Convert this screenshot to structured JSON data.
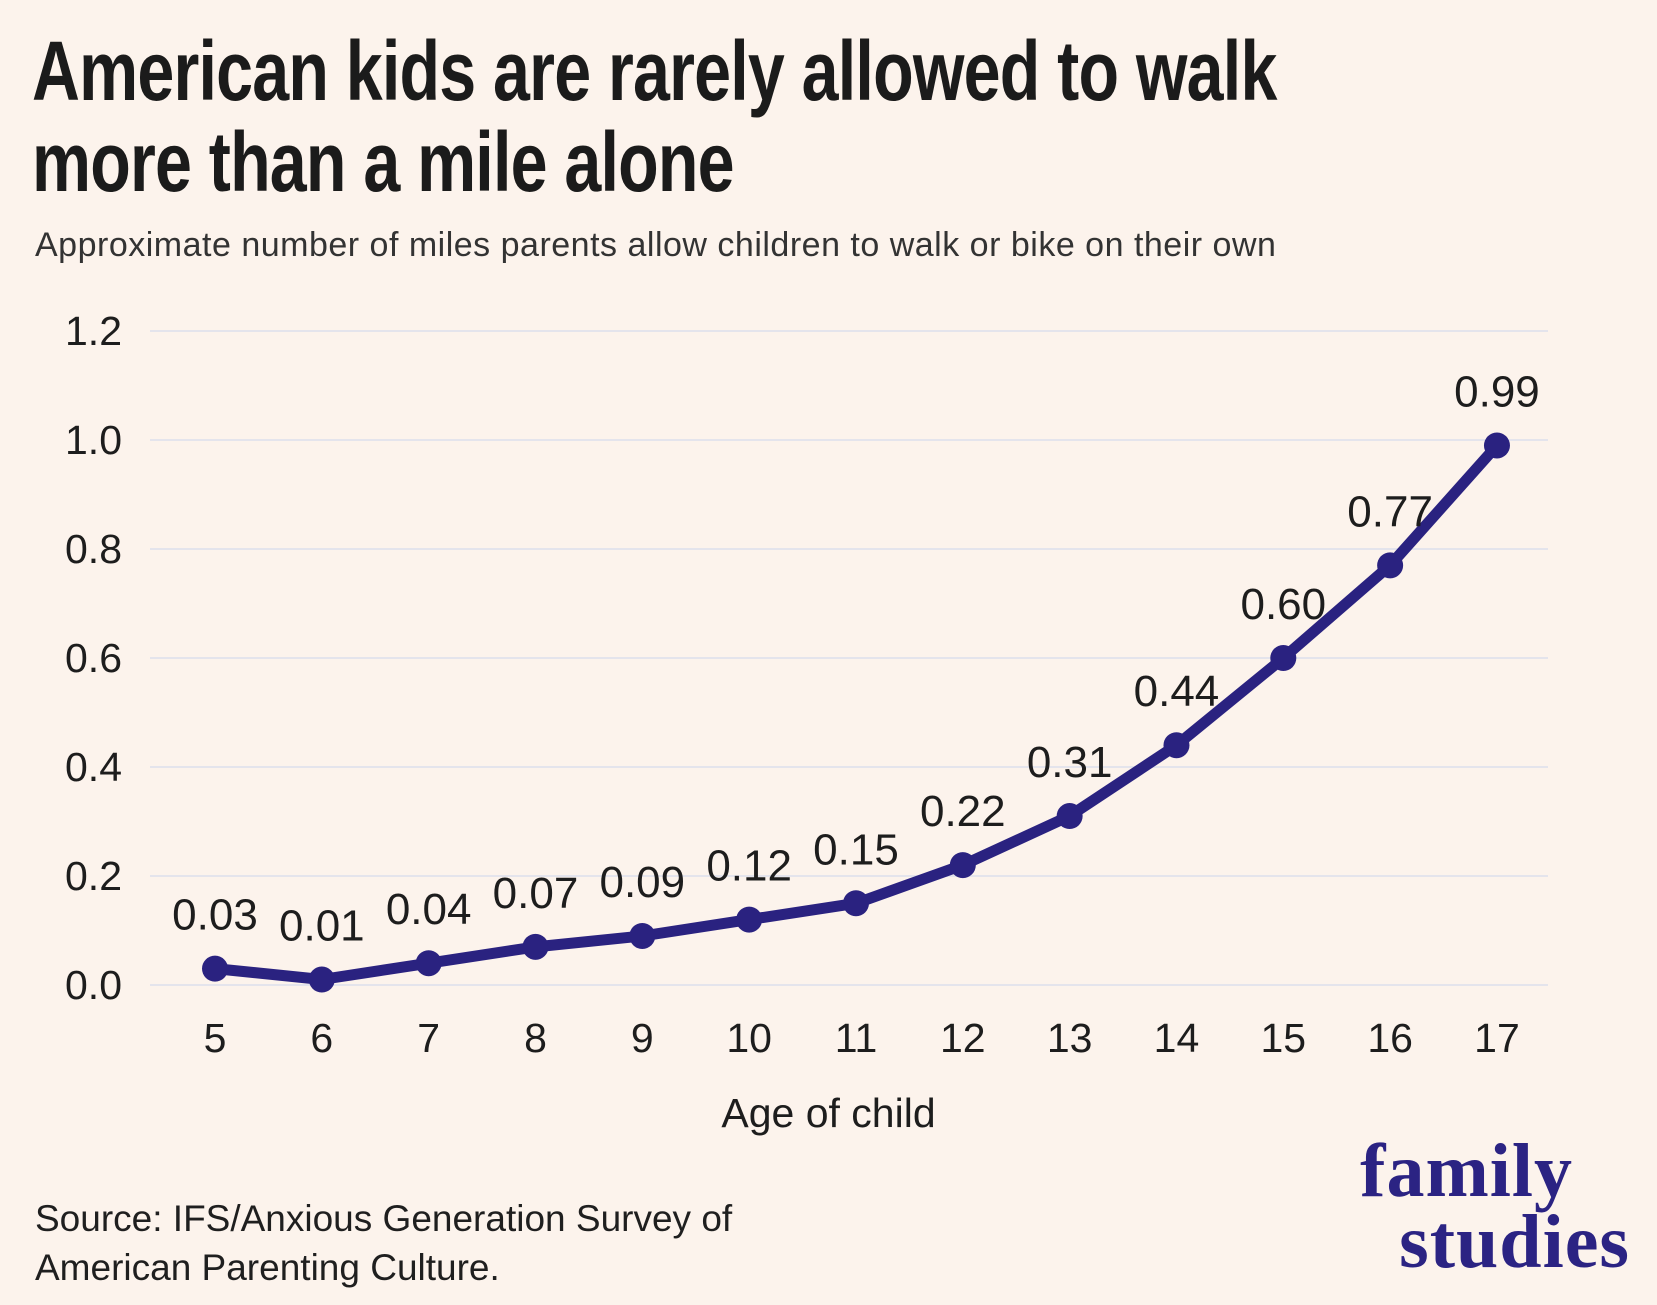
{
  "header": {
    "title_lines": [
      "American kids are rarely allowed to walk",
      "more than a mile alone"
    ],
    "subtitle": "Approximate number of miles parents allow children to walk or bike on their own"
  },
  "chart_data": {
    "type": "line",
    "title": "American kids are rarely allowed to walk more than a mile alone",
    "subtitle": "Approximate number of miles parents allow children to walk or bike on their own",
    "x": [
      5,
      6,
      7,
      8,
      9,
      10,
      11,
      12,
      13,
      14,
      15,
      16,
      17
    ],
    "values": [
      0.03,
      0.01,
      0.04,
      0.07,
      0.09,
      0.12,
      0.15,
      0.22,
      0.31,
      0.44,
      0.6,
      0.77,
      0.99
    ],
    "point_labels": [
      "0.03",
      "0.01",
      "0.04",
      "0.07",
      "0.09",
      "0.12",
      "0.15",
      "0.22",
      "0.31",
      "0.44",
      "0.60",
      "0.77",
      "0.99"
    ],
    "xlabel": "Age of child",
    "ylabel": "",
    "ytick_labels": [
      "0.0",
      "0.2",
      "0.4",
      "0.6",
      "0.8",
      "1.0",
      "1.2"
    ],
    "ylim": [
      0,
      1.2
    ],
    "grid": true,
    "legend": false
  },
  "footer": {
    "source_lines": [
      "Source: IFS/Anxious Generation Survey of",
      "American Parenting Culture."
    ],
    "logo_lines": [
      "family",
      "studies"
    ]
  },
  "colors": {
    "background": "#fcf3ec",
    "line": "#2a2280",
    "grid": "#e4e4ec",
    "title": "#1b1b1b",
    "subtitle": "#333333",
    "tick": "#1d1d1d",
    "source": "#1f1f1f",
    "logo": "#2b2383"
  }
}
